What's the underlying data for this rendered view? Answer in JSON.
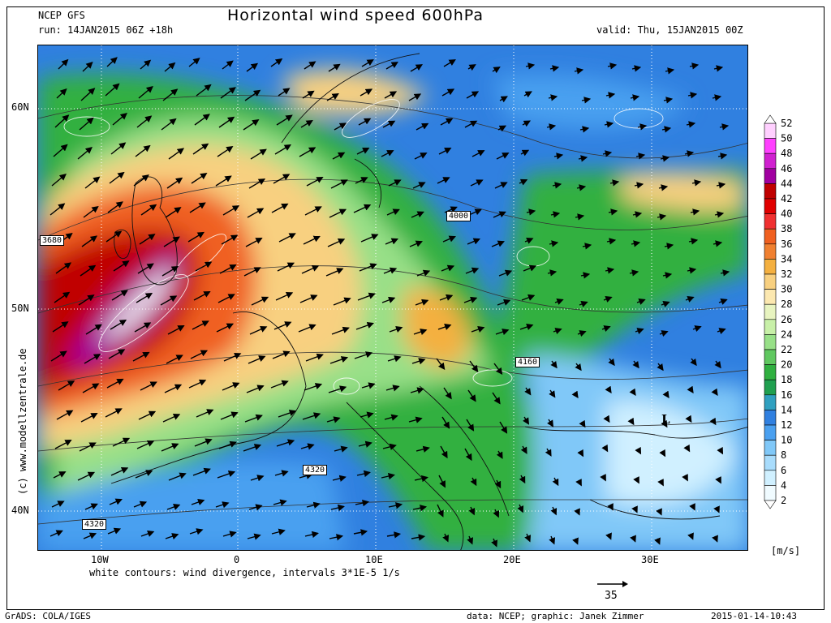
{
  "header": {
    "model": "NCEP GFS",
    "run": "run: 14JAN2015 06Z +18h",
    "title": "Horizontal wind speed 600hPa",
    "valid": "valid: Thu, 15JAN2015 00Z"
  },
  "axes": {
    "lat_labels": [
      "60N",
      "50N",
      "40N"
    ],
    "lon_labels": [
      "10W",
      "0",
      "10E",
      "20E",
      "30E"
    ]
  },
  "contour_labels": [
    "3680",
    "4000",
    "4160",
    "4320",
    "4320"
  ],
  "pressure_marker": "L",
  "watermark": "(c) www.modellzentrale.de",
  "caption": "white contours: wind divergence, intervals 3*1E-5 1/s",
  "reference_arrow": "35",
  "legend": {
    "unit": "[m/s]",
    "levels": [
      "52",
      "50",
      "48",
      "46",
      "44",
      "42",
      "40",
      "38",
      "36",
      "34",
      "32",
      "30",
      "28",
      "26",
      "24",
      "22",
      "20",
      "18",
      "16",
      "14",
      "12",
      "10",
      "8",
      "6",
      "4",
      "2"
    ],
    "colors": [
      "#ffffff",
      "#ffd0ff",
      "#ff40ff",
      "#d020d0",
      "#a000a0",
      "#c00000",
      "#e00000",
      "#f03030",
      "#f06020",
      "#f08030",
      "#f4b040",
      "#f8d080",
      "#fce8b0",
      "#e8f4c0",
      "#c8f0a8",
      "#98e088",
      "#60c860",
      "#30b040",
      "#20a050",
      "#30a0c0",
      "#3080e0",
      "#4aa0f0",
      "#80c8f8",
      "#a8dcfc",
      "#d0f0ff",
      "#f0fbff"
    ]
  },
  "footer": {
    "grads": "GrADS: COLA/IGES",
    "credit": "data: NCEP; graphic: Janek Zimmer",
    "timestamp": "2015-01-14-10:43"
  }
}
